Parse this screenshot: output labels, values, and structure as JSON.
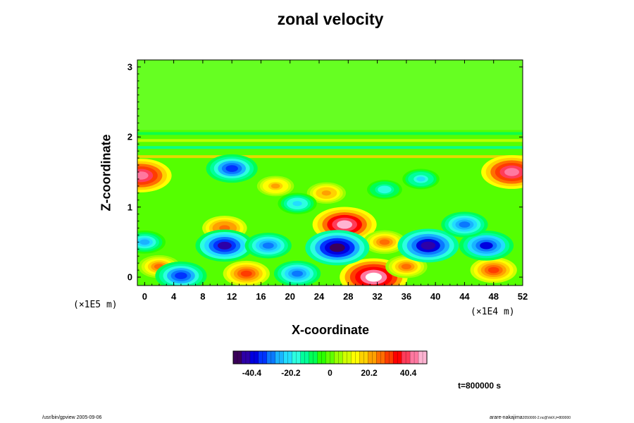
{
  "chart_data": {
    "type": "heatmap",
    "title": "zonal velocity",
    "xlabel": "X-coordinate",
    "ylabel": "Z-coordinate",
    "x_ticks": [
      "0",
      "4",
      "8",
      "12",
      "16",
      "20",
      "24",
      "28",
      "32",
      "36",
      "40",
      "44",
      "48",
      "52"
    ],
    "y_ticks": [
      "0",
      "1",
      "2",
      "3"
    ],
    "xlim": [
      -1,
      52
    ],
    "ylim": [
      -0.12,
      3.1
    ],
    "x_unit": "(×1E4 m)",
    "y_unit": "(×1E5 m)",
    "colorbar": {
      "ticks": [
        "-40.4",
        "-20.2",
        "0",
        "20.2",
        "40.4"
      ],
      "range": [
        -50,
        50
      ],
      "colors": [
        "#3a005a",
        "#2d00a8",
        "#0000e0",
        "#0033ff",
        "#0a78ff",
        "#19b4ff",
        "#22ddff",
        "#2cffe0",
        "#00ff9a",
        "#00ff55",
        "#2aff00",
        "#60ff00",
        "#9aff00",
        "#d0ff00",
        "#ffff00",
        "#ffd200",
        "#ffa000",
        "#ff6e00",
        "#ff3c00",
        "#ff0000",
        "#ff3c5a",
        "#ff78a0",
        "#ffb4d2"
      ]
    },
    "features": [
      {
        "kind": "max",
        "x": 31.5,
        "z": 0.0,
        "value": 52
      },
      {
        "kind": "max",
        "x": 27.5,
        "z": 0.75,
        "value": 48
      },
      {
        "kind": "max",
        "x": 50.5,
        "z": 1.5,
        "value": 45
      },
      {
        "kind": "max",
        "x": -0.5,
        "z": 1.45,
        "value": 45
      },
      {
        "kind": "max",
        "x": 14,
        "z": 0.05,
        "value": 30
      },
      {
        "kind": "max",
        "x": 48,
        "z": 0.1,
        "value": 30
      },
      {
        "kind": "max",
        "x": 11,
        "z": 0.7,
        "value": 28
      },
      {
        "kind": "max",
        "x": 36,
        "z": 0.15,
        "value": 25
      },
      {
        "kind": "max",
        "x": 33,
        "z": 0.5,
        "value": 26
      },
      {
        "kind": "max",
        "x": 25,
        "z": 1.2,
        "value": 22
      },
      {
        "kind": "max",
        "x": 18,
        "z": 1.3,
        "value": 20
      },
      {
        "kind": "max",
        "x": 2,
        "z": 0.15,
        "value": 25
      },
      {
        "kind": "min",
        "x": 26.5,
        "z": 0.42,
        "value": -48
      },
      {
        "kind": "min",
        "x": 11,
        "z": 0.45,
        "value": -42
      },
      {
        "kind": "min",
        "x": 39,
        "z": 0.45,
        "value": -45
      },
      {
        "kind": "min",
        "x": 47,
        "z": 0.45,
        "value": -38
      },
      {
        "kind": "min",
        "x": 5,
        "z": 0.02,
        "value": -35
      },
      {
        "kind": "min",
        "x": 21,
        "z": 0.05,
        "value": -30
      },
      {
        "kind": "min",
        "x": 12,
        "z": 1.55,
        "value": -35
      },
      {
        "kind": "min",
        "x": 17,
        "z": 0.45,
        "value": -30
      },
      {
        "kind": "min",
        "x": 44,
        "z": 0.75,
        "value": -30
      },
      {
        "kind": "min",
        "x": 0,
        "z": 0.5,
        "value": -25
      },
      {
        "kind": "min",
        "x": 21,
        "z": 1.05,
        "value": -22
      },
      {
        "kind": "min",
        "x": 38,
        "z": 1.4,
        "value": -20
      },
      {
        "kind": "min",
        "x": 33,
        "z": 1.25,
        "value": -18
      }
    ],
    "bands": [
      {
        "z": 1.72,
        "value": 18
      },
      {
        "z": 1.85,
        "value": -12
      },
      {
        "z": 1.95,
        "value": 10
      },
      {
        "z": 2.05,
        "value": -8
      }
    ]
  },
  "time_label": "t=800000 s",
  "footer_left": "/usr/bin/gpview 2005-09-06",
  "footer_right": "arare-nakajima",
  "footer_right_small": "2050000-2.nc@VelX,t=800000"
}
